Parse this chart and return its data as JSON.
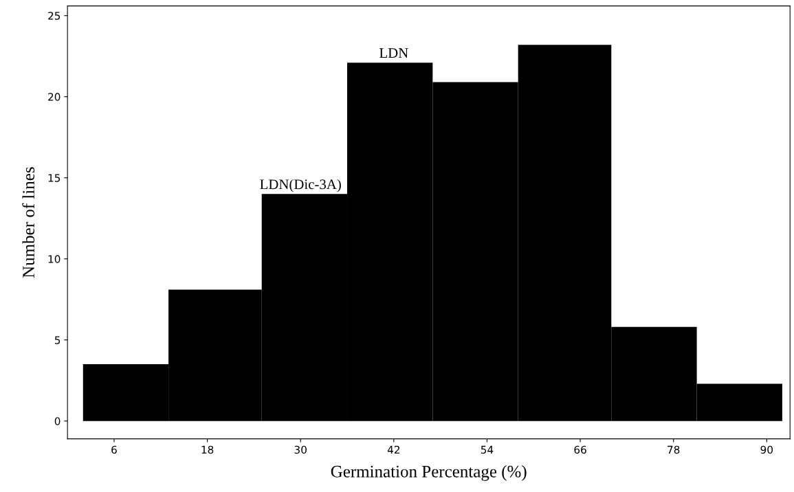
{
  "chart_data": {
    "type": "histogram",
    "xlabel": "Germination Percentage (%)",
    "ylabel": "Number of lines",
    "bins": [
      2,
      13,
      25,
      36,
      47,
      58,
      70,
      81,
      92
    ],
    "values": [
      3.5,
      8.1,
      14,
      22.1,
      20.9,
      23.2,
      5.8,
      2.3
    ],
    "color": "#000000",
    "xlim": [
      0,
      93
    ],
    "xticks": [
      6,
      18,
      30,
      42,
      54,
      66,
      78,
      90
    ],
    "ylim": [
      -1.1,
      25.6
    ],
    "yticks": [
      0,
      5,
      10,
      15,
      20,
      25
    ],
    "grid": false,
    "annotations": [
      {
        "text": "LDN(Dic-3A)",
        "x": 30,
        "y": 14
      },
      {
        "text": "LDN",
        "x": 42,
        "y": 22.1
      }
    ]
  }
}
